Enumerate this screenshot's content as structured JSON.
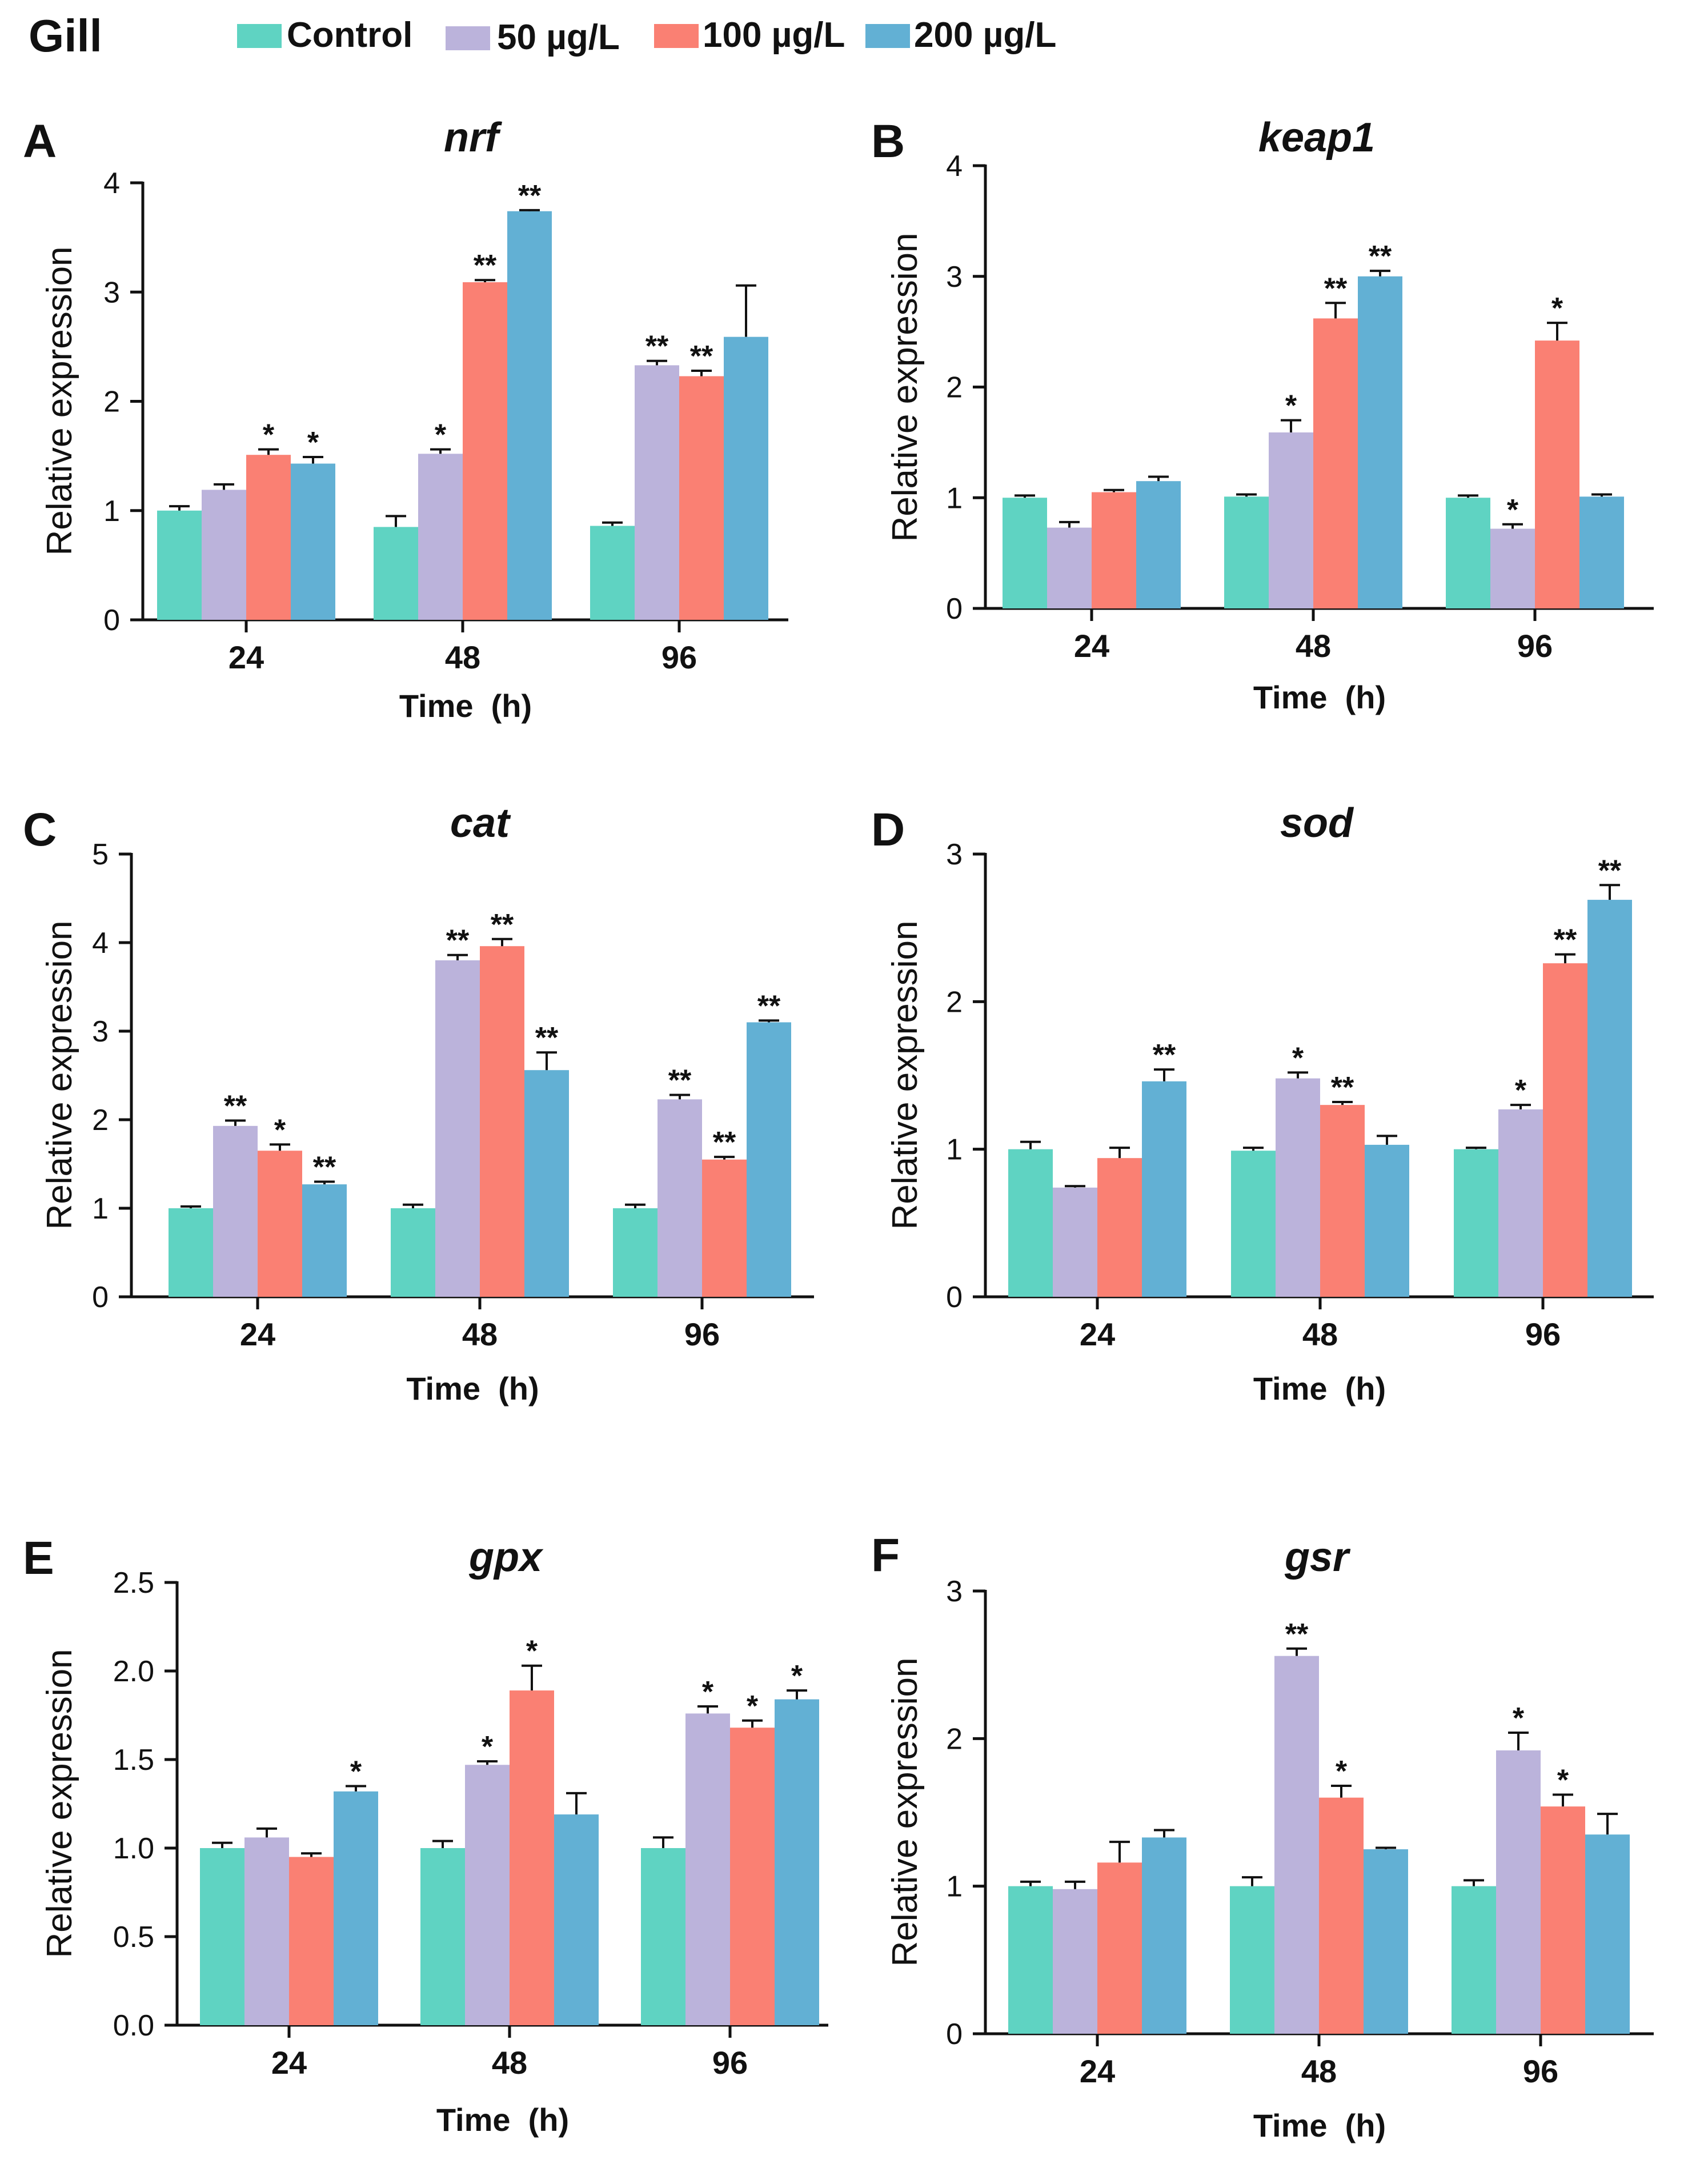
{
  "figure": {
    "tissue": "Gill",
    "legend": [
      {
        "label": "Control",
        "color": "#5fd3c2"
      },
      {
        "label": "50 µg/L",
        "color": "#bbb3db"
      },
      {
        "label": "100 µg/L",
        "color": "#fa8073"
      },
      {
        "label": "200 µg/L",
        "color": "#62b0d4"
      }
    ]
  },
  "chart_data": [
    {
      "panel": "A",
      "type": "bar",
      "title": "nrf",
      "xlabel": "Time  (h)",
      "ylabel": "Relative expression",
      "ylim": [
        0,
        4
      ],
      "yticks": [
        "0",
        "1",
        "2",
        "3",
        "4"
      ],
      "categories": [
        "24",
        "48",
        "96"
      ],
      "series": [
        {
          "name": "Control",
          "values": [
            1.0,
            0.85,
            0.86
          ],
          "errors": [
            0.04,
            0.1,
            0.03
          ],
          "sig": [
            "",
            "",
            ""
          ]
        },
        {
          "name": "50 µg/L",
          "values": [
            1.19,
            1.52,
            2.33
          ],
          "errors": [
            0.05,
            0.04,
            0.04
          ],
          "sig": [
            "",
            "*",
            "**"
          ]
        },
        {
          "name": "100 µg/L",
          "values": [
            1.51,
            3.09,
            2.23
          ],
          "errors": [
            0.05,
            0.02,
            0.05
          ],
          "sig": [
            "*",
            "**",
            "**"
          ]
        },
        {
          "name": "200 µg/L",
          "values": [
            1.43,
            3.74,
            2.59
          ],
          "errors": [
            0.06,
            0.01,
            0.47
          ],
          "sig": [
            "*",
            "**",
            ""
          ]
        }
      ]
    },
    {
      "panel": "B",
      "type": "bar",
      "title": "keap1",
      "xlabel": "Time  (h)",
      "ylabel": "Relative expression",
      "ylim": [
        0,
        4
      ],
      "yticks": [
        "0",
        "1",
        "2",
        "3",
        "4"
      ],
      "categories": [
        "24",
        "48",
        "96"
      ],
      "series": [
        {
          "name": "Control",
          "values": [
            1.0,
            1.01,
            1.0
          ],
          "errors": [
            0.02,
            0.02,
            0.02
          ],
          "sig": [
            "",
            "",
            ""
          ]
        },
        {
          "name": "50 µg/L",
          "values": [
            0.73,
            1.59,
            0.72
          ],
          "errors": [
            0.05,
            0.11,
            0.04
          ],
          "sig": [
            "",
            "*",
            "*"
          ]
        },
        {
          "name": "100 µg/L",
          "values": [
            1.05,
            2.62,
            2.42
          ],
          "errors": [
            0.02,
            0.14,
            0.16
          ],
          "sig": [
            "",
            "**",
            "*"
          ]
        },
        {
          "name": "200 µg/L",
          "values": [
            1.15,
            3.0,
            1.01
          ],
          "errors": [
            0.04,
            0.05,
            0.02
          ],
          "sig": [
            "",
            "**",
            ""
          ]
        }
      ]
    },
    {
      "panel": "C",
      "type": "bar",
      "title": "cat",
      "xlabel": "Time  (h)",
      "ylabel": "Relative expression",
      "ylim": [
        0,
        5
      ],
      "yticks": [
        "0",
        "1",
        "2",
        "3",
        "4",
        "5"
      ],
      "categories": [
        "24",
        "48",
        "96"
      ],
      "series": [
        {
          "name": "Control",
          "values": [
            1.0,
            1.0,
            1.0
          ],
          "errors": [
            0.02,
            0.04,
            0.04
          ],
          "sig": [
            "",
            "",
            ""
          ]
        },
        {
          "name": "50 µg/L",
          "values": [
            1.93,
            3.8,
            2.23
          ],
          "errors": [
            0.06,
            0.06,
            0.05
          ],
          "sig": [
            "**",
            "**",
            "**"
          ]
        },
        {
          "name": "100 µg/L",
          "values": [
            1.65,
            3.96,
            1.55
          ],
          "errors": [
            0.07,
            0.08,
            0.03
          ],
          "sig": [
            "*",
            "**",
            "**"
          ]
        },
        {
          "name": "200 µg/L",
          "values": [
            1.27,
            2.56,
            3.1
          ],
          "errors": [
            0.03,
            0.2,
            0.02
          ],
          "sig": [
            "**",
            "**",
            "**"
          ]
        }
      ]
    },
    {
      "panel": "D",
      "type": "bar",
      "title": "sod",
      "xlabel": "Time  (h)",
      "ylabel": "Relative expression",
      "ylim": [
        0,
        3
      ],
      "yticks": [
        "0",
        "1",
        "2",
        "3"
      ],
      "categories": [
        "24",
        "48",
        "96"
      ],
      "series": [
        {
          "name": "Control",
          "values": [
            1.0,
            0.99,
            1.0
          ],
          "errors": [
            0.05,
            0.02,
            0.01
          ],
          "sig": [
            "",
            "",
            ""
          ]
        },
        {
          "name": "50 µg/L",
          "values": [
            0.74,
            1.48,
            1.27
          ],
          "errors": [
            0.01,
            0.04,
            0.03
          ],
          "sig": [
            "",
            "*",
            "*"
          ]
        },
        {
          "name": "100 µg/L",
          "values": [
            0.94,
            1.3,
            2.26
          ],
          "errors": [
            0.07,
            0.02,
            0.06
          ],
          "sig": [
            "",
            "**",
            "**"
          ]
        },
        {
          "name": "200 µg/L",
          "values": [
            1.46,
            1.03,
            2.69
          ],
          "errors": [
            0.08,
            0.06,
            0.1
          ],
          "sig": [
            "**",
            "",
            "**"
          ]
        }
      ]
    },
    {
      "panel": "E",
      "type": "bar",
      "title": "gpx",
      "xlabel": "Time  (h)",
      "ylabel": "Relative expression",
      "ylim": [
        0,
        2.5
      ],
      "yticks": [
        "0.0",
        "0.5",
        "1.0",
        "1.5",
        "2.0",
        "2.5"
      ],
      "categories": [
        "24",
        "48",
        "96"
      ],
      "series": [
        {
          "name": "Control",
          "values": [
            1.0,
            1.0,
            1.0
          ],
          "errors": [
            0.03,
            0.04,
            0.06
          ],
          "sig": [
            "",
            "",
            ""
          ]
        },
        {
          "name": "50 µg/L",
          "values": [
            1.06,
            1.47,
            1.76
          ],
          "errors": [
            0.05,
            0.02,
            0.04
          ],
          "sig": [
            "",
            "*",
            "*"
          ]
        },
        {
          "name": "100 µg/L",
          "values": [
            0.95,
            1.89,
            1.68
          ],
          "errors": [
            0.02,
            0.14,
            0.04
          ],
          "sig": [
            "",
            "*",
            "*"
          ]
        },
        {
          "name": "200 µg/L",
          "values": [
            1.32,
            1.19,
            1.84
          ],
          "errors": [
            0.03,
            0.12,
            0.05
          ],
          "sig": [
            "*",
            "",
            "*"
          ]
        }
      ]
    },
    {
      "panel": "F",
      "type": "bar",
      "title": "gsr",
      "xlabel": "Time  (h)",
      "ylabel": "Relative expression",
      "ylim": [
        0,
        3
      ],
      "yticks": [
        "0",
        "1",
        "2",
        "3"
      ],
      "categories": [
        "24",
        "48",
        "96"
      ],
      "series": [
        {
          "name": "Control",
          "values": [
            1.0,
            1.0,
            1.0
          ],
          "errors": [
            0.03,
            0.06,
            0.04
          ],
          "sig": [
            "",
            "",
            ""
          ]
        },
        {
          "name": "50 µg/L",
          "values": [
            0.98,
            2.56,
            1.92
          ],
          "errors": [
            0.05,
            0.05,
            0.12
          ],
          "sig": [
            "",
            "**",
            "*"
          ]
        },
        {
          "name": "100 µg/L",
          "values": [
            1.16,
            1.6,
            1.54
          ],
          "errors": [
            0.14,
            0.08,
            0.08
          ],
          "sig": [
            "",
            "*",
            "*"
          ]
        },
        {
          "name": "200 µg/L",
          "values": [
            1.33,
            1.25,
            1.35
          ],
          "errors": [
            0.05,
            0.01,
            0.14
          ],
          "sig": [
            "",
            "",
            ""
          ]
        }
      ]
    }
  ]
}
